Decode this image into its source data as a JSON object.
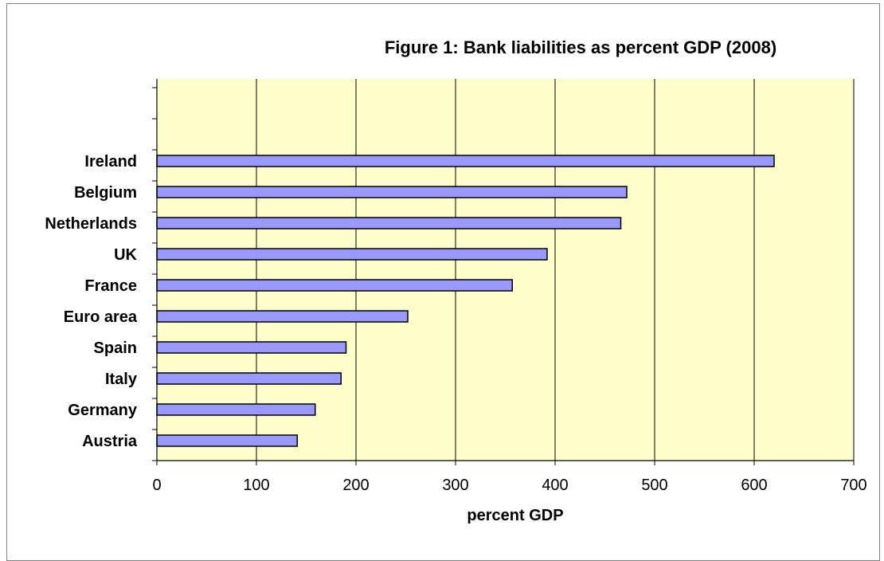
{
  "chart_data": {
    "type": "bar",
    "orientation": "horizontal",
    "title": "Figure 1: Bank liabilities as percent GDP (2008)",
    "xlabel": "percent GDP",
    "ylabel": "",
    "categories": [
      "Ireland",
      "Belgium",
      "Netherlands",
      "UK",
      "France",
      "Euro area",
      "Spain",
      "Italy",
      "Germany",
      "Austria"
    ],
    "values": [
      620,
      472,
      466,
      392,
      357,
      252,
      190,
      185,
      159,
      141
    ],
    "xlim": [
      0,
      700
    ],
    "xticks": [
      0,
      100,
      200,
      300,
      400,
      500,
      600,
      700
    ],
    "xtick_labels": [
      "0",
      "100",
      "200",
      "300",
      "400",
      "500",
      "600",
      "700"
    ],
    "grid": "vertical",
    "legend": "none",
    "colors": {
      "plot_background": "#ffffcc",
      "bar_fill": "#9999ff",
      "bar_stroke": "#000000",
      "gridline": "#000000"
    }
  }
}
